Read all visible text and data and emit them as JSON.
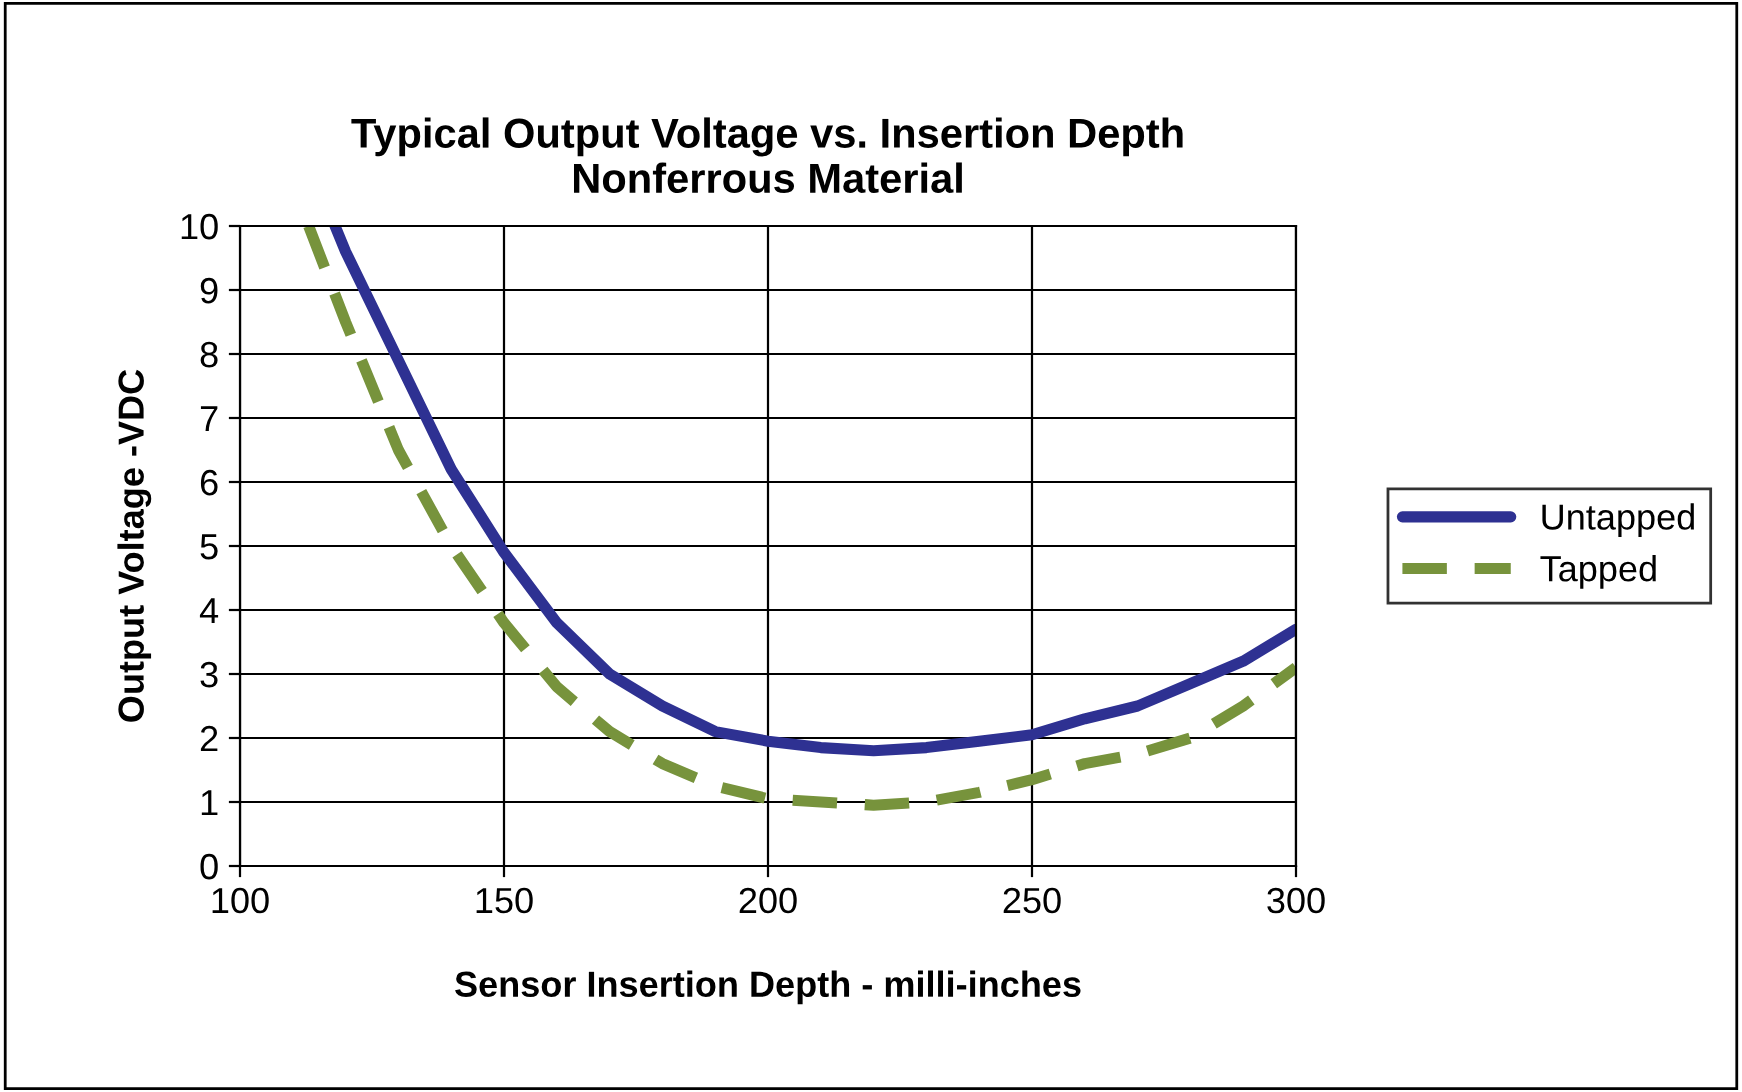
{
  "chart_data": {
    "type": "line",
    "title": "Typical Output Voltage vs. Insertion Depth",
    "subtitle": "Nonferrous Material",
    "xlabel": "Sensor Insertion Depth - milli-inches",
    "ylabel": "Output Voltage -VDC",
    "xlim": [
      100,
      300
    ],
    "xticks": [
      100,
      150,
      200,
      250,
      300
    ],
    "ylim": [
      0,
      10
    ],
    "yticks": [
      0,
      1,
      2,
      3,
      4,
      5,
      6,
      7,
      8,
      9,
      10
    ],
    "grid": true,
    "legend": "right",
    "marker": "none",
    "series": [
      {
        "name": "Untapped",
        "color": "#2e3192",
        "line_style": "solid",
        "x": [
          118,
          120,
          130,
          140,
          150,
          160,
          170,
          180,
          190,
          200,
          210,
          220,
          230,
          240,
          250,
          260,
          270,
          280,
          290,
          300
        ],
        "values": [
          10,
          9.6,
          7.9,
          6.2,
          4.9,
          3.8,
          3.0,
          2.5,
          2.1,
          1.95,
          1.85,
          1.8,
          1.85,
          1.95,
          2.05,
          2.3,
          2.5,
          2.85,
          3.2,
          3.7
        ]
      },
      {
        "name": "Tapped",
        "color": "#77933c",
        "line_style": "dashed",
        "x": [
          113,
          120,
          130,
          140,
          150,
          160,
          170,
          180,
          190,
          200,
          210,
          220,
          230,
          240,
          250,
          260,
          270,
          280,
          290,
          300
        ],
        "values": [
          10,
          8.5,
          6.5,
          5.0,
          3.8,
          2.8,
          2.1,
          1.6,
          1.25,
          1.05,
          1.0,
          0.95,
          1.0,
          1.15,
          1.35,
          1.6,
          1.75,
          2.0,
          2.5,
          3.1
        ]
      }
    ]
  }
}
